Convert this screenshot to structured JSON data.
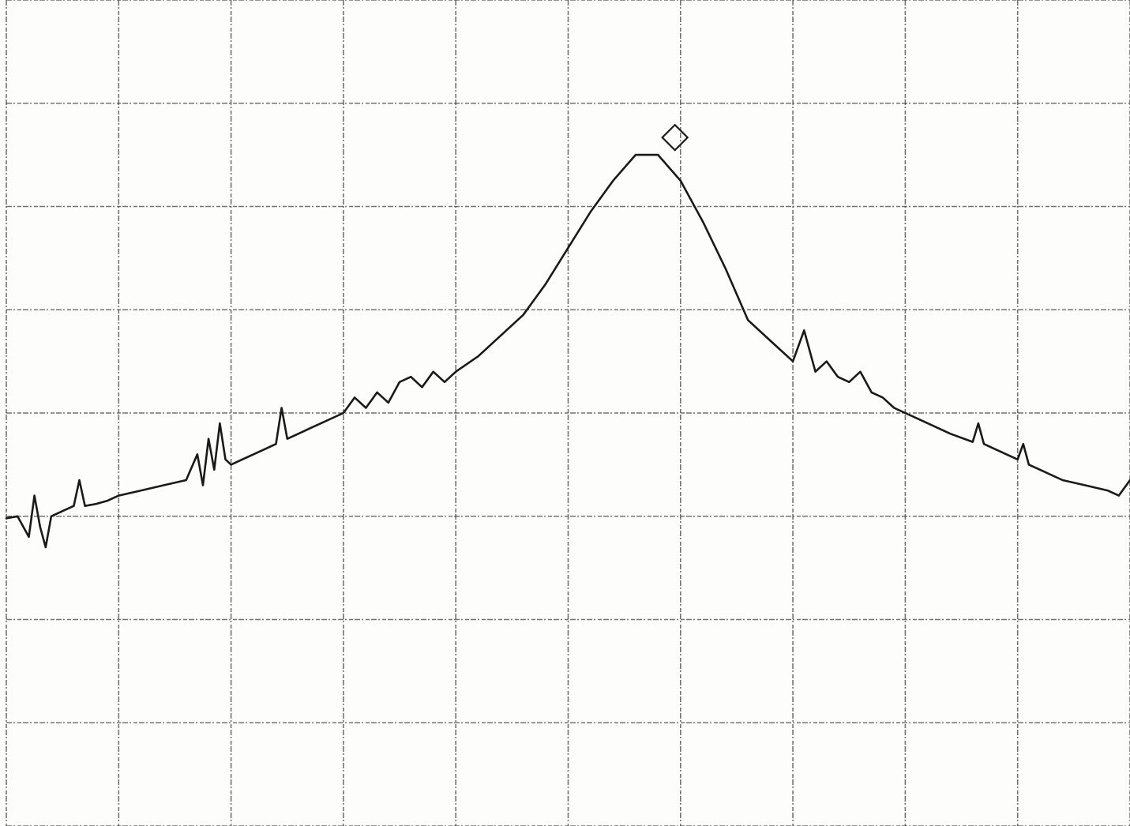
{
  "chart_data": {
    "type": "line",
    "title": "",
    "xlabel": "",
    "ylabel": "",
    "grid": true,
    "grid_divisions": {
      "x": 10,
      "y": 8
    },
    "xlim": [
      0,
      10
    ],
    "ylim": [
      0,
      8
    ],
    "marker": {
      "shape": "diamond",
      "x": 5.95,
      "y": 6.5
    },
    "series": [
      {
        "x": [
          0.0,
          0.1,
          0.2,
          0.25,
          0.3,
          0.35,
          0.4,
          0.5,
          0.6,
          0.65,
          0.7,
          0.8,
          0.9,
          1.0,
          1.2,
          1.4,
          1.6,
          1.7,
          1.75,
          1.8,
          1.85,
          1.9,
          1.95,
          2.0,
          2.1,
          2.2,
          2.3,
          2.4,
          2.45,
          2.5,
          2.6,
          2.7,
          2.8,
          2.9,
          3.0,
          3.1,
          3.2,
          3.3,
          3.4,
          3.5,
          3.6,
          3.7,
          3.8,
          3.9,
          4.0,
          4.2,
          4.4,
          4.6,
          4.8,
          5.0,
          5.2,
          5.4,
          5.6,
          5.8,
          6.0,
          6.2,
          6.4,
          6.6,
          6.8,
          7.0,
          7.1,
          7.2,
          7.3,
          7.4,
          7.5,
          7.6,
          7.7,
          7.8,
          7.9,
          8.0,
          8.2,
          8.4,
          8.6,
          8.65,
          8.7,
          8.8,
          9.0,
          9.05,
          9.1,
          9.2,
          9.4,
          9.6,
          9.8,
          9.9,
          10.0
        ],
        "y": [
          2.98,
          3.0,
          2.8,
          3.2,
          2.9,
          2.7,
          3.0,
          3.05,
          3.1,
          3.35,
          3.1,
          3.12,
          3.15,
          3.2,
          3.25,
          3.3,
          3.35,
          3.6,
          3.3,
          3.75,
          3.45,
          3.9,
          3.55,
          3.5,
          3.55,
          3.6,
          3.65,
          3.7,
          4.05,
          3.75,
          3.8,
          3.85,
          3.9,
          3.95,
          4.0,
          4.15,
          4.05,
          4.2,
          4.1,
          4.3,
          4.35,
          4.25,
          4.4,
          4.3,
          4.4,
          4.55,
          4.75,
          4.95,
          5.25,
          5.6,
          5.95,
          6.25,
          6.5,
          6.5,
          6.25,
          5.85,
          5.4,
          4.9,
          4.7,
          4.5,
          4.8,
          4.4,
          4.5,
          4.35,
          4.3,
          4.4,
          4.2,
          4.15,
          4.05,
          4.0,
          3.9,
          3.8,
          3.72,
          3.9,
          3.7,
          3.65,
          3.55,
          3.7,
          3.5,
          3.45,
          3.35,
          3.3,
          3.25,
          3.2,
          3.35
        ]
      }
    ]
  }
}
